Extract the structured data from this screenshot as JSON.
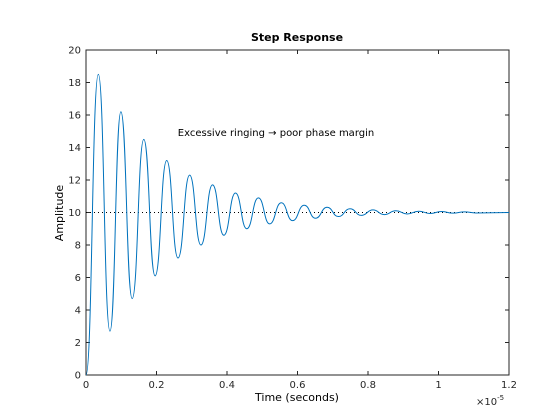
{
  "chart_data": {
    "type": "line",
    "title": "Step Response",
    "xlabel": "Time (seconds)",
    "ylabel": "Amplitude",
    "x_multiplier_label": "×10",
    "x_multiplier_exponent": "-5",
    "annotation": "Excessive ringing  →  poor phase margin",
    "xlim": [
      0,
      1.2
    ],
    "ylim": [
      0,
      20
    ],
    "xticks": [
      "0",
      "0.2",
      "0.4",
      "0.6",
      "0.8",
      "1",
      "1.2"
    ],
    "xtick_values": [
      0,
      0.2,
      0.4,
      0.6,
      0.8,
      1.0,
      1.2
    ],
    "yticks": [
      "0",
      "2",
      "4",
      "6",
      "8",
      "10",
      "12",
      "14",
      "16",
      "18",
      "20"
    ],
    "ytick_values": [
      0,
      2,
      4,
      6,
      8,
      10,
      12,
      14,
      16,
      18,
      20
    ],
    "grid": false,
    "line_color": "#0072BD",
    "final_value": 10,
    "series": [
      {
        "x": [
          0,
          0.035,
          0.068,
          0.099,
          0.131,
          0.164,
          0.196,
          0.229,
          0.261,
          0.294,
          0.326,
          0.359,
          0.391,
          0.424,
          0.456,
          0.489,
          0.521,
          0.554,
          0.586,
          0.619,
          0.651,
          0.684,
          0.716,
          0.749,
          0.781,
          0.814,
          0.846,
          0.879,
          0.911,
          0.944,
          0.976,
          1.009,
          1.041,
          1.074,
          1.106,
          1.2
        ],
        "values": [
          0,
          18.5,
          2.7,
          16.2,
          4.7,
          14.5,
          6.1,
          13.2,
          7.2,
          12.3,
          8.0,
          11.7,
          8.6,
          11.2,
          9.0,
          10.9,
          9.3,
          10.6,
          9.5,
          10.45,
          9.65,
          10.32,
          9.75,
          10.23,
          9.82,
          10.16,
          9.87,
          10.11,
          9.91,
          10.08,
          9.94,
          10.06,
          9.96,
          10.04,
          9.97,
          10.0
        ]
      }
    ]
  }
}
